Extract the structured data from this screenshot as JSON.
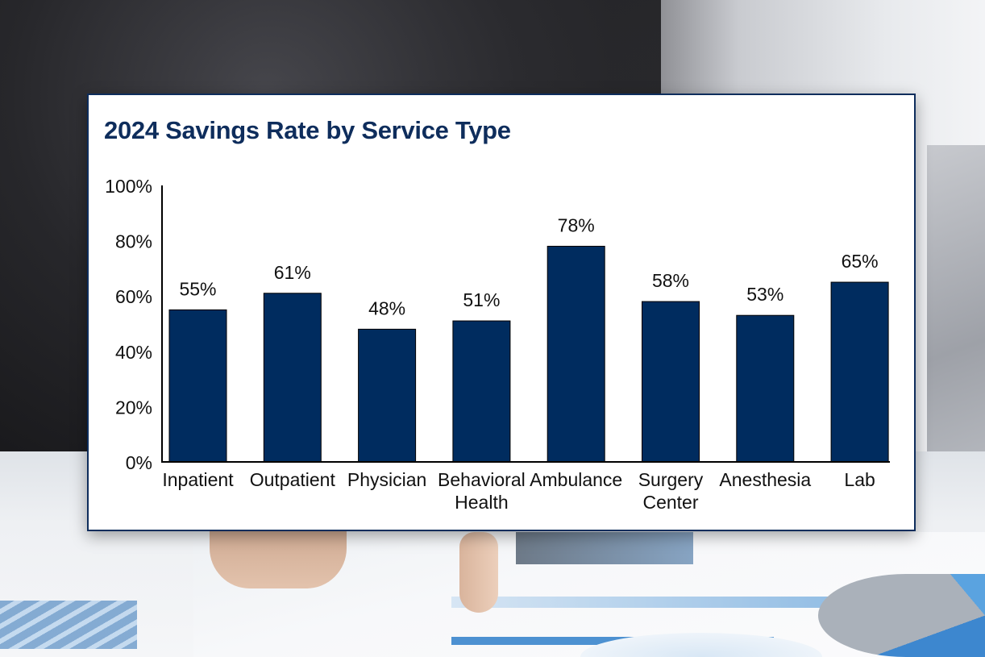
{
  "chart_data": {
    "type": "bar",
    "title": "2024 Savings Rate by Service Type",
    "xlabel": "",
    "ylabel": "",
    "categories": [
      [
        "Inpatient"
      ],
      [
        "Outpatient"
      ],
      [
        "Physician"
      ],
      [
        "Behavioral",
        "Health"
      ],
      [
        "Ambulance"
      ],
      [
        "Surgery",
        "Center"
      ],
      [
        "Anesthesia"
      ],
      [
        "Lab"
      ]
    ],
    "values": [
      55,
      61,
      48,
      51,
      78,
      58,
      53,
      65
    ],
    "data_labels": [
      "55%",
      "61%",
      "48%",
      "51%",
      "78%",
      "58%",
      "53%",
      "65%"
    ],
    "ylim": [
      0,
      100
    ],
    "yticks": [
      0,
      20,
      40,
      60,
      80,
      100
    ],
    "ytick_labels": [
      "0%",
      "20%",
      "40%",
      "60%",
      "80%",
      "100%"
    ],
    "grid": false,
    "legend": "none",
    "bar_color": "#002c5f",
    "title_color": "#0e2d5c"
  }
}
